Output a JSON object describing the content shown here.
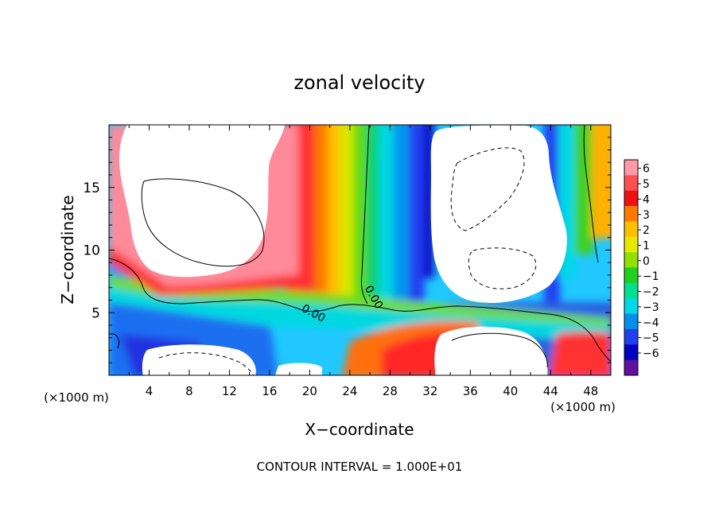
{
  "chart_data": {
    "type": "heatmap",
    "title": "zonal velocity",
    "xlabel": "X−coordinate",
    "ylabel": "Z−coordinate",
    "x_unit_left": "(×1000 m)",
    "x_unit_right": "(×1000 m)",
    "footer": "CONTOUR INTERVAL = 1.000E+01",
    "xlim": [
      0,
      50
    ],
    "ylim": [
      0,
      20
    ],
    "x_ticks": [
      4,
      8,
      12,
      16,
      20,
      24,
      28,
      32,
      36,
      40,
      44,
      48
    ],
    "x_tick_labels": [
      "4",
      "8",
      "12",
      "16",
      "20",
      "24",
      "28",
      "32",
      "36",
      "40",
      "44",
      "48"
    ],
    "y_ticks": [
      5,
      10,
      15
    ],
    "y_tick_labels": [
      "5",
      "10",
      "15"
    ],
    "colorbar": {
      "values": [
        6,
        5,
        4,
        3,
        2,
        1,
        0,
        -1,
        -2,
        -3,
        -4,
        -5,
        -6
      ],
      "labels": [
        "6",
        "5",
        "4",
        "3",
        "2",
        "1",
        "0",
        "−1",
        "−2",
        "−3",
        "−4",
        "−5",
        "−6"
      ],
      "colors": [
        "#ff9aa6",
        "#ff5050",
        "#f01010",
        "#ff7a00",
        "#ffc000",
        "#e8e800",
        "#90e000",
        "#20d020",
        "#00e090",
        "#00d8e8",
        "#0090e8",
        "#2040f0",
        "#0000c0",
        "#6010a0"
      ],
      "saturated_above": "#ffffff"
    },
    "contour_labels": [
      "0.00",
      "0.00"
    ]
  }
}
